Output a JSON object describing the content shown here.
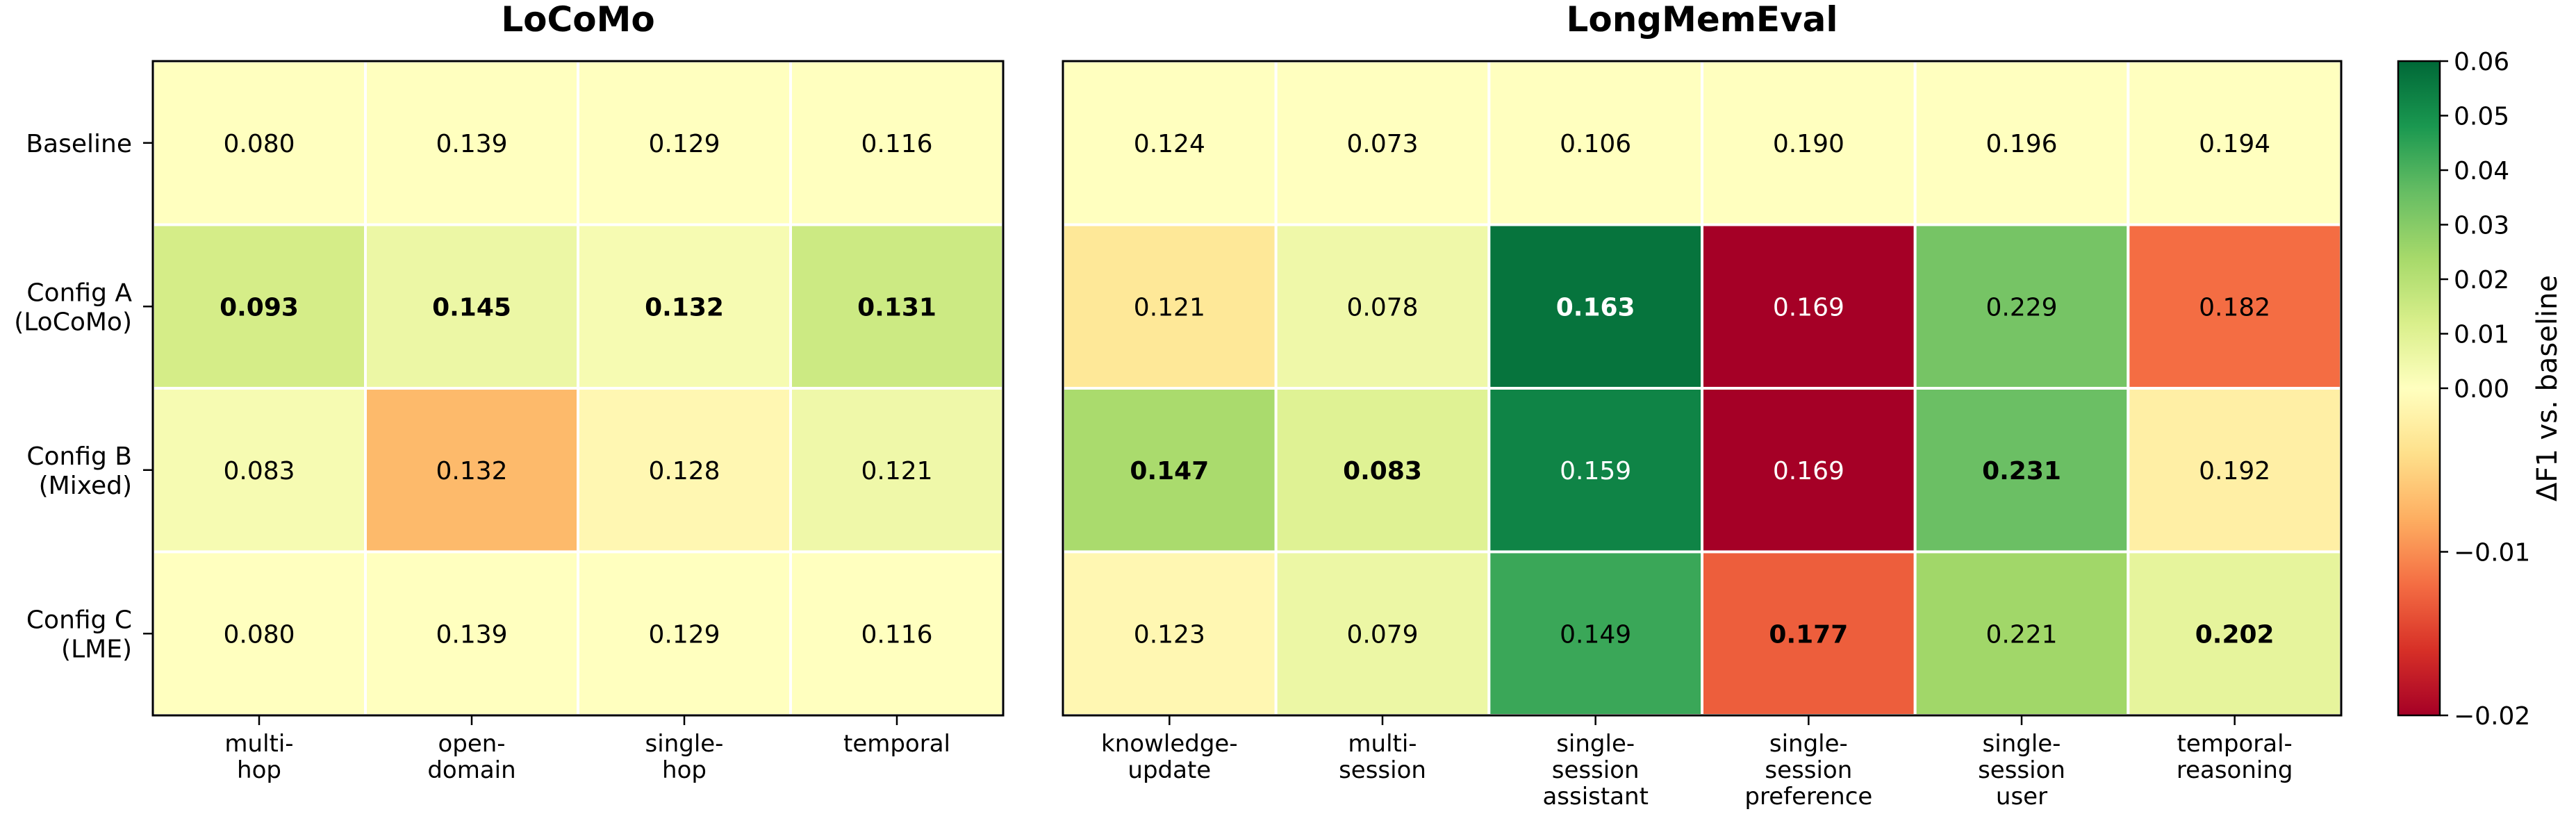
{
  "chart_data": [
    {
      "type": "heatmap",
      "title": "LoCoMo",
      "rows": [
        "Baseline",
        "Config A\n(LoCoMo)",
        "Config B\n(Mixed)",
        "Config C\n(LME)"
      ],
      "columns": [
        "multi-\nhop",
        "open-\ndomain",
        "single-\nhop",
        "temporal"
      ],
      "values": [
        [
          0.08,
          0.139,
          0.129,
          0.116
        ],
        [
          0.093,
          0.145,
          0.132,
          0.131
        ],
        [
          0.083,
          0.132,
          0.128,
          0.121
        ],
        [
          0.08,
          0.139,
          0.129,
          0.116
        ]
      ],
      "labels": [
        [
          "0.080",
          "0.139",
          "0.129",
          "0.116"
        ],
        [
          "0.093",
          "0.145",
          "0.132",
          "0.131"
        ],
        [
          "0.083",
          "0.132",
          "0.128",
          "0.121"
        ],
        [
          "0.080",
          "0.139",
          "0.129",
          "0.116"
        ]
      ],
      "bold": [
        [
          false,
          false,
          false,
          false
        ],
        [
          true,
          true,
          true,
          true
        ],
        [
          false,
          false,
          false,
          false
        ],
        [
          false,
          false,
          false,
          false
        ]
      ]
    },
    {
      "type": "heatmap",
      "title": "LongMemEval",
      "rows": [
        "Baseline",
        "Config A\n(LoCoMo)",
        "Config B\n(Mixed)",
        "Config C\n(LME)"
      ],
      "columns": [
        "knowledge-\nupdate",
        "multi-\nsession",
        "single-\nsession\nassistant",
        "single-\nsession\npreference",
        "single-\nsession\nuser",
        "temporal-\nreasoning"
      ],
      "values": [
        [
          0.124,
          0.073,
          0.106,
          0.19,
          0.196,
          0.194
        ],
        [
          0.121,
          0.078,
          0.163,
          0.169,
          0.229,
          0.182
        ],
        [
          0.147,
          0.083,
          0.159,
          0.169,
          0.231,
          0.192
        ],
        [
          0.123,
          0.079,
          0.149,
          0.177,
          0.221,
          0.202
        ]
      ],
      "labels": [
        [
          "0.124",
          "0.073",
          "0.106",
          "0.190",
          "0.196",
          "0.194"
        ],
        [
          "0.121",
          "0.078",
          "0.163",
          "0.169",
          "0.229",
          "0.182"
        ],
        [
          "0.147",
          "0.083",
          "0.159",
          "0.169",
          "0.231",
          "0.192"
        ],
        [
          "0.123",
          "0.079",
          "0.149",
          "0.177",
          "0.221",
          "0.202"
        ]
      ],
      "bold": [
        [
          false,
          false,
          false,
          false,
          false,
          false
        ],
        [
          false,
          false,
          true,
          false,
          false,
          false
        ],
        [
          true,
          true,
          false,
          false,
          true,
          false
        ],
        [
          false,
          false,
          false,
          true,
          false,
          true
        ]
      ]
    }
  ],
  "colorbar": {
    "label": "ΔF1 vs. baseline",
    "min": -0.02,
    "max": 0.06,
    "center": 0.0,
    "ticks": [
      "0.06",
      "0.05",
      "0.04",
      "0.03",
      "0.02",
      "0.01",
      "0.00",
      "−0.01",
      "−0.02"
    ],
    "tick_values": [
      0.06,
      0.05,
      0.04,
      0.03,
      0.02,
      0.01,
      0.0,
      -0.01,
      -0.02
    ],
    "colormap": "RdYlGn"
  }
}
